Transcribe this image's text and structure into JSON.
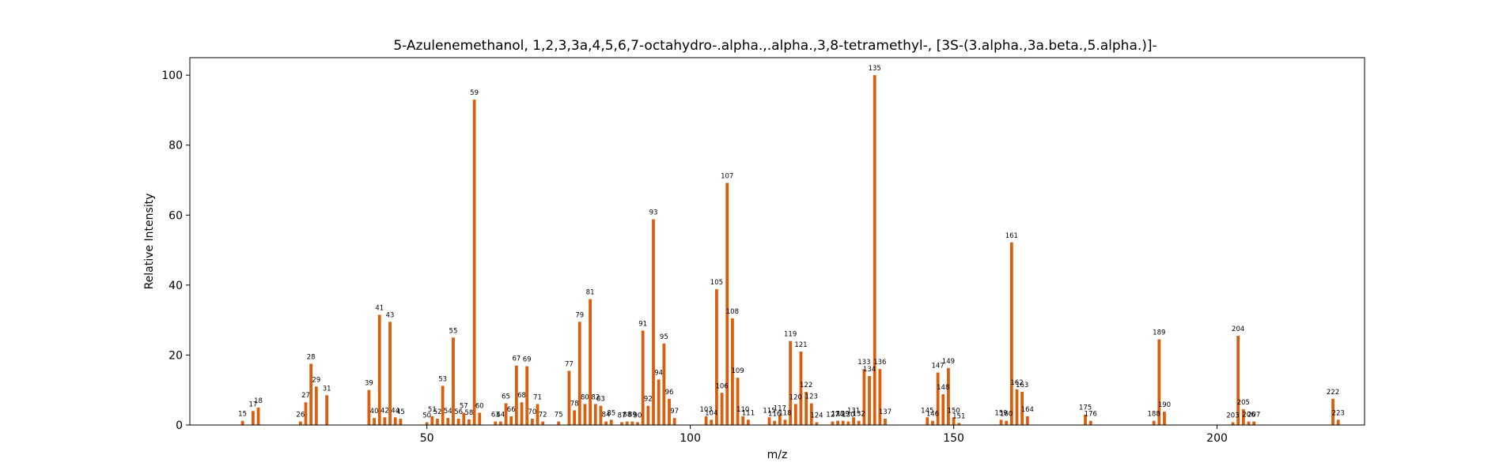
{
  "chart_data": {
    "type": "bar",
    "title": "5-Azulenemethanol, 1,2,3,3a,4,5,6,7-octahydro-.alpha.,.alpha.,3,8-tetramethyl-, [3S-(3.alpha.,3a.beta.,5.alpha.)]-",
    "xlabel": "m/z",
    "ylabel": "Relative Intensity",
    "xlim": [
      5,
      228
    ],
    "ylim": [
      0,
      105
    ],
    "xticks": [
      50,
      100,
      150,
      200
    ],
    "yticks": [
      0,
      20,
      40,
      60,
      80,
      100
    ],
    "bar_color": "#d95f0e",
    "grid": false,
    "points": [
      {
        "mz": 15,
        "intensity": 1.2
      },
      {
        "mz": 17,
        "intensity": 4.0
      },
      {
        "mz": 18,
        "intensity": 5.0
      },
      {
        "mz": 26,
        "intensity": 1.0
      },
      {
        "mz": 27,
        "intensity": 6.5
      },
      {
        "mz": 28,
        "intensity": 17.5
      },
      {
        "mz": 29,
        "intensity": 11.0
      },
      {
        "mz": 31,
        "intensity": 8.5
      },
      {
        "mz": 39,
        "intensity": 10.0
      },
      {
        "mz": 40,
        "intensity": 2.0
      },
      {
        "mz": 41,
        "intensity": 31.5
      },
      {
        "mz": 42,
        "intensity": 2.2
      },
      {
        "mz": 43,
        "intensity": 29.5
      },
      {
        "mz": 44,
        "intensity": 2.2
      },
      {
        "mz": 45,
        "intensity": 1.8
      },
      {
        "mz": 50,
        "intensity": 0.8
      },
      {
        "mz": 51,
        "intensity": 2.5
      },
      {
        "mz": 52,
        "intensity": 1.8
      },
      {
        "mz": 53,
        "intensity": 11.2
      },
      {
        "mz": 54,
        "intensity": 2.0
      },
      {
        "mz": 55,
        "intensity": 25.0
      },
      {
        "mz": 56,
        "intensity": 1.8
      },
      {
        "mz": 57,
        "intensity": 3.5
      },
      {
        "mz": 58,
        "intensity": 1.6
      },
      {
        "mz": 59,
        "intensity": 93.0
      },
      {
        "mz": 60,
        "intensity": 3.5
      },
      {
        "mz": 63,
        "intensity": 1.0
      },
      {
        "mz": 64,
        "intensity": 1.0
      },
      {
        "mz": 65,
        "intensity": 6.2
      },
      {
        "mz": 66,
        "intensity": 2.5
      },
      {
        "mz": 67,
        "intensity": 17.0
      },
      {
        "mz": 68,
        "intensity": 6.5
      },
      {
        "mz": 69,
        "intensity": 16.8
      },
      {
        "mz": 70,
        "intensity": 1.8
      },
      {
        "mz": 71,
        "intensity": 6.0
      },
      {
        "mz": 72,
        "intensity": 1.0
      },
      {
        "mz": 75,
        "intensity": 1.0
      },
      {
        "mz": 77,
        "intensity": 15.5
      },
      {
        "mz": 78,
        "intensity": 4.2
      },
      {
        "mz": 79,
        "intensity": 29.5
      },
      {
        "mz": 80,
        "intensity": 6.0
      },
      {
        "mz": 81,
        "intensity": 36.0
      },
      {
        "mz": 82,
        "intensity": 6.0
      },
      {
        "mz": 83,
        "intensity": 5.5
      },
      {
        "mz": 84,
        "intensity": 1.0
      },
      {
        "mz": 85,
        "intensity": 1.5
      },
      {
        "mz": 87,
        "intensity": 0.8
      },
      {
        "mz": 88,
        "intensity": 1.0
      },
      {
        "mz": 89,
        "intensity": 1.0
      },
      {
        "mz": 90,
        "intensity": 0.8
      },
      {
        "mz": 91,
        "intensity": 27.0
      },
      {
        "mz": 92,
        "intensity": 5.5
      },
      {
        "mz": 93,
        "intensity": 58.8
      },
      {
        "mz": 94,
        "intensity": 13.0
      },
      {
        "mz": 95,
        "intensity": 23.3
      },
      {
        "mz": 96,
        "intensity": 7.5
      },
      {
        "mz": 97,
        "intensity": 2.0
      },
      {
        "mz": 103,
        "intensity": 2.5
      },
      {
        "mz": 104,
        "intensity": 1.5
      },
      {
        "mz": 105,
        "intensity": 38.8
      },
      {
        "mz": 106,
        "intensity": 9.2
      },
      {
        "mz": 107,
        "intensity": 69.2
      },
      {
        "mz": 108,
        "intensity": 30.5
      },
      {
        "mz": 109,
        "intensity": 13.5
      },
      {
        "mz": 110,
        "intensity": 2.5
      },
      {
        "mz": 111,
        "intensity": 1.5
      },
      {
        "mz": 115,
        "intensity": 2.2
      },
      {
        "mz": 116,
        "intensity": 1.2
      },
      {
        "mz": 117,
        "intensity": 2.8
      },
      {
        "mz": 118,
        "intensity": 1.5
      },
      {
        "mz": 119,
        "intensity": 24.0
      },
      {
        "mz": 120,
        "intensity": 6.0
      },
      {
        "mz": 121,
        "intensity": 21.0
      },
      {
        "mz": 122,
        "intensity": 9.5
      },
      {
        "mz": 123,
        "intensity": 6.2
      },
      {
        "mz": 124,
        "intensity": 0.8
      },
      {
        "mz": 127,
        "intensity": 1.0
      },
      {
        "mz": 128,
        "intensity": 1.2
      },
      {
        "mz": 129,
        "intensity": 1.2
      },
      {
        "mz": 130,
        "intensity": 1.0
      },
      {
        "mz": 131,
        "intensity": 2.2
      },
      {
        "mz": 132,
        "intensity": 1.2
      },
      {
        "mz": 133,
        "intensity": 16.0
      },
      {
        "mz": 134,
        "intensity": 14.0
      },
      {
        "mz": 135,
        "intensity": 100.0
      },
      {
        "mz": 136,
        "intensity": 16.0
      },
      {
        "mz": 137,
        "intensity": 1.8
      },
      {
        "mz": 145,
        "intensity": 2.2
      },
      {
        "mz": 146,
        "intensity": 1.2
      },
      {
        "mz": 147,
        "intensity": 15.0
      },
      {
        "mz": 148,
        "intensity": 8.8
      },
      {
        "mz": 149,
        "intensity": 16.3
      },
      {
        "mz": 150,
        "intensity": 2.2
      },
      {
        "mz": 151,
        "intensity": 0.6
      },
      {
        "mz": 159,
        "intensity": 1.5
      },
      {
        "mz": 160,
        "intensity": 1.2
      },
      {
        "mz": 161,
        "intensity": 52.2
      },
      {
        "mz": 162,
        "intensity": 10.2
      },
      {
        "mz": 163,
        "intensity": 9.5
      },
      {
        "mz": 164,
        "intensity": 2.5
      },
      {
        "mz": 175,
        "intensity": 3.0
      },
      {
        "mz": 176,
        "intensity": 1.2
      },
      {
        "mz": 188,
        "intensity": 1.2
      },
      {
        "mz": 189,
        "intensity": 24.5
      },
      {
        "mz": 190,
        "intensity": 3.8
      },
      {
        "mz": 203,
        "intensity": 0.8
      },
      {
        "mz": 204,
        "intensity": 25.5
      },
      {
        "mz": 205,
        "intensity": 4.5
      },
      {
        "mz": 206,
        "intensity": 1.0
      },
      {
        "mz": 207,
        "intensity": 1.0
      },
      {
        "mz": 222,
        "intensity": 7.5
      },
      {
        "mz": 223,
        "intensity": 1.5
      }
    ]
  }
}
